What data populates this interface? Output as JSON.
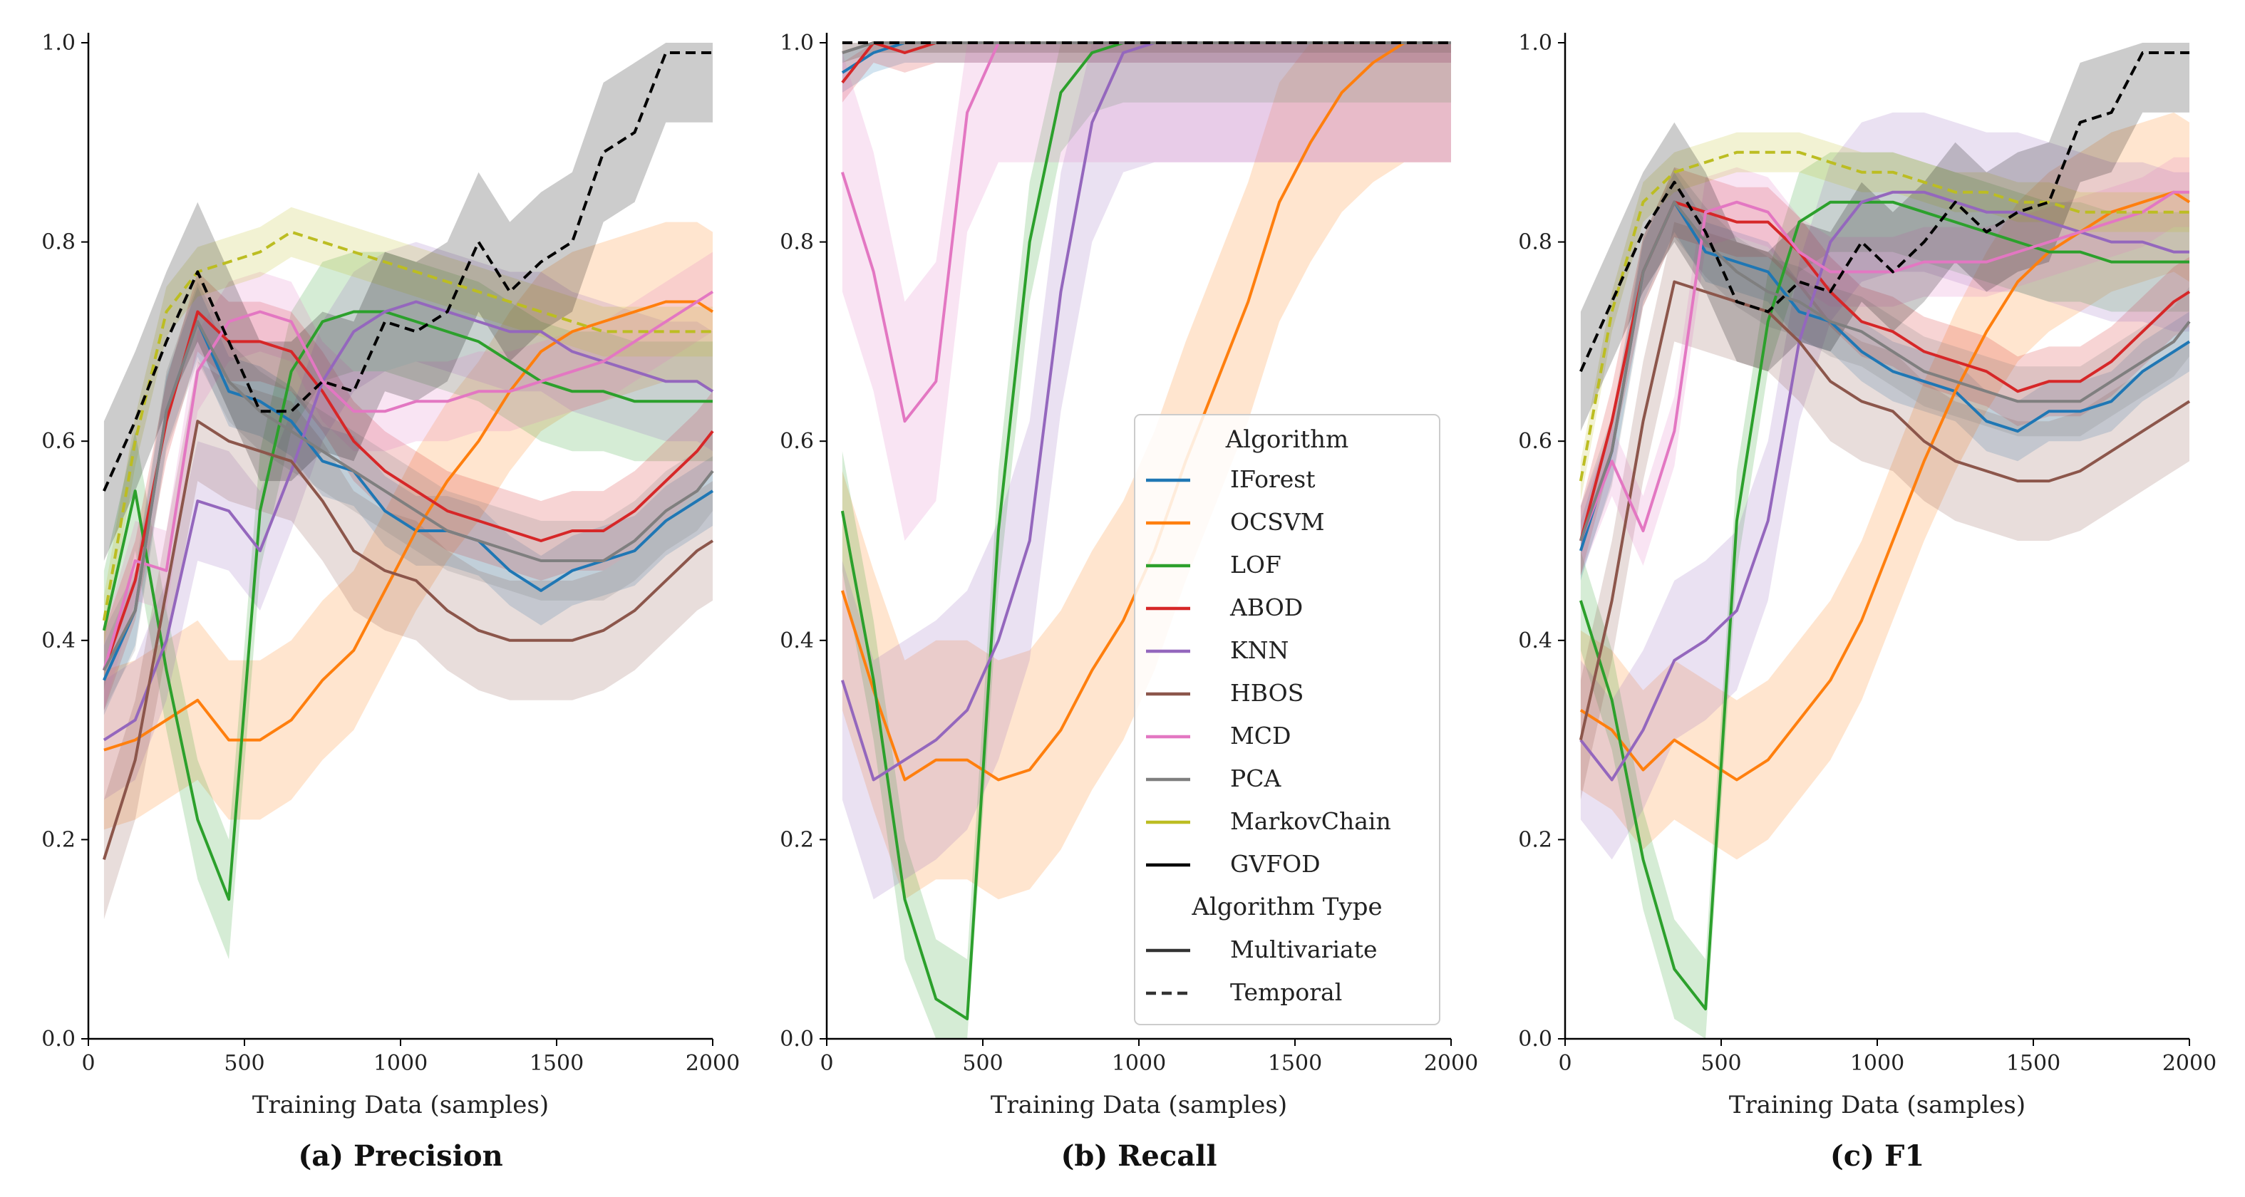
{
  "chart_data": [
    {
      "type": "line",
      "caption": "(a)  Precision",
      "xlabel": "Training Data (samples)",
      "ylabel": "",
      "xlim": [
        0,
        2000
      ],
      "ylim": [
        0,
        1.0
      ],
      "xticks": [
        "0",
        "500",
        "1000",
        "1500",
        "2000"
      ],
      "yticks": [
        "0.0",
        "0.2",
        "0.4",
        "0.6",
        "0.8",
        "1.0"
      ],
      "x": [
        50,
        150,
        250,
        350,
        450,
        550,
        650,
        750,
        850,
        950,
        1050,
        1150,
        1250,
        1350,
        1450,
        1550,
        1650,
        1750,
        1850,
        1950,
        2000
      ],
      "series": [
        {
          "name": "IForest",
          "values": [
            0.36,
            0.43,
            0.63,
            0.72,
            0.65,
            0.64,
            0.62,
            0.58,
            0.57,
            0.53,
            0.51,
            0.51,
            0.5,
            0.47,
            0.45,
            0.47,
            0.48,
            0.49,
            0.52,
            0.54,
            0.55
          ],
          "band": 0.035
        },
        {
          "name": "OCSVM",
          "values": [
            0.29,
            0.3,
            0.32,
            0.34,
            0.3,
            0.3,
            0.32,
            0.36,
            0.39,
            0.45,
            0.51,
            0.56,
            0.6,
            0.65,
            0.69,
            0.71,
            0.72,
            0.73,
            0.74,
            0.74,
            0.73
          ],
          "band": 0.08
        },
        {
          "name": "LOF",
          "values": [
            0.41,
            0.55,
            0.37,
            0.22,
            0.14,
            0.53,
            0.67,
            0.72,
            0.73,
            0.73,
            0.72,
            0.71,
            0.7,
            0.68,
            0.66,
            0.65,
            0.65,
            0.64,
            0.64,
            0.64,
            0.64
          ],
          "band": 0.06
        },
        {
          "name": "ABOD",
          "values": [
            0.37,
            0.46,
            0.62,
            0.73,
            0.7,
            0.7,
            0.69,
            0.65,
            0.6,
            0.57,
            0.55,
            0.53,
            0.52,
            0.51,
            0.5,
            0.51,
            0.51,
            0.53,
            0.56,
            0.59,
            0.61
          ],
          "band": 0.04
        },
        {
          "name": "KNN",
          "values": [
            0.3,
            0.32,
            0.4,
            0.54,
            0.53,
            0.49,
            0.57,
            0.66,
            0.71,
            0.73,
            0.74,
            0.73,
            0.72,
            0.71,
            0.71,
            0.69,
            0.68,
            0.67,
            0.66,
            0.66,
            0.65
          ],
          "band": 0.06
        },
        {
          "name": "HBOS",
          "values": [
            0.18,
            0.28,
            0.45,
            0.62,
            0.6,
            0.59,
            0.58,
            0.54,
            0.49,
            0.47,
            0.46,
            0.43,
            0.41,
            0.4,
            0.4,
            0.4,
            0.41,
            0.43,
            0.46,
            0.49,
            0.5
          ],
          "band": 0.06
        },
        {
          "name": "MCD",
          "values": [
            0.37,
            0.48,
            0.47,
            0.67,
            0.72,
            0.73,
            0.72,
            0.66,
            0.63,
            0.63,
            0.64,
            0.64,
            0.65,
            0.65,
            0.66,
            0.67,
            0.68,
            0.7,
            0.72,
            0.74,
            0.75
          ],
          "band": 0.04
        },
        {
          "name": "PCA",
          "values": [
            0.37,
            0.43,
            0.63,
            0.72,
            0.66,
            0.63,
            0.61,
            0.59,
            0.57,
            0.55,
            0.53,
            0.51,
            0.5,
            0.49,
            0.48,
            0.48,
            0.48,
            0.5,
            0.53,
            0.55,
            0.57
          ],
          "band": 0.04
        },
        {
          "name": "MarkovChain",
          "values": [
            0.42,
            0.6,
            0.73,
            0.77,
            0.78,
            0.79,
            0.81,
            0.8,
            0.79,
            0.78,
            0.77,
            0.76,
            0.75,
            0.74,
            0.73,
            0.72,
            0.71,
            0.71,
            0.71,
            0.71,
            0.71
          ],
          "band": 0.025,
          "dashed": true
        },
        {
          "name": "GVFOD",
          "values": [
            0.55,
            0.62,
            0.7,
            0.77,
            0.7,
            0.63,
            0.63,
            0.66,
            0.65,
            0.72,
            0.71,
            0.73,
            0.8,
            0.75,
            0.78,
            0.8,
            0.89,
            0.91,
            0.99,
            0.99,
            0.99
          ],
          "band": 0.07,
          "dashed": true
        }
      ]
    },
    {
      "type": "line",
      "caption": "(b)  Recall",
      "xlabel": "Training Data (samples)",
      "ylabel": "",
      "xlim": [
        0,
        2000
      ],
      "ylim": [
        0,
        1.0
      ],
      "xticks": [
        "0",
        "500",
        "1000",
        "1500",
        "2000"
      ],
      "yticks": [
        "0.0",
        "0.2",
        "0.4",
        "0.6",
        "0.8",
        "1.0"
      ],
      "x": [
        50,
        150,
        250,
        350,
        450,
        550,
        650,
        750,
        850,
        950,
        1050,
        1150,
        1250,
        1350,
        1450,
        1550,
        1650,
        1750,
        1850,
        1950,
        2000
      ],
      "series": [
        {
          "name": "IForest",
          "values": [
            0.97,
            0.99,
            1.0,
            1.0,
            1.0,
            1.0,
            1.0,
            1.0,
            1.0,
            1.0,
            1.0,
            1.0,
            1.0,
            1.0,
            1.0,
            1.0,
            1.0,
            1.0,
            1.0,
            1.0,
            1.0
          ],
          "band": 0.02
        },
        {
          "name": "OCSVM",
          "values": [
            0.45,
            0.35,
            0.26,
            0.28,
            0.28,
            0.26,
            0.27,
            0.31,
            0.37,
            0.42,
            0.49,
            0.58,
            0.66,
            0.74,
            0.84,
            0.9,
            0.95,
            0.98,
            1.0,
            1.0,
            1.0
          ],
          "band": 0.12
        },
        {
          "name": "LOF",
          "values": [
            0.53,
            0.36,
            0.14,
            0.04,
            0.02,
            0.51,
            0.8,
            0.95,
            0.99,
            1.0,
            1.0,
            1.0,
            1.0,
            1.0,
            1.0,
            1.0,
            1.0,
            1.0,
            1.0,
            1.0,
            1.0
          ],
          "band": 0.06
        },
        {
          "name": "ABOD",
          "values": [
            0.96,
            1.0,
            0.99,
            1.0,
            1.0,
            1.0,
            1.0,
            1.0,
            1.0,
            1.0,
            1.0,
            1.0,
            1.0,
            1.0,
            1.0,
            1.0,
            1.0,
            1.0,
            1.0,
            1.0,
            1.0
          ],
          "band": 0.02
        },
        {
          "name": "KNN",
          "values": [
            0.36,
            0.26,
            0.28,
            0.3,
            0.33,
            0.4,
            0.5,
            0.75,
            0.92,
            0.99,
            1.0,
            1.0,
            1.0,
            1.0,
            1.0,
            1.0,
            1.0,
            1.0,
            1.0,
            1.0,
            1.0
          ],
          "band": 0.12
        },
        {
          "name": "HBOS",
          "values": [
            0.99,
            1.0,
            1.0,
            1.0,
            1.0,
            1.0,
            1.0,
            1.0,
            1.0,
            1.0,
            1.0,
            1.0,
            1.0,
            1.0,
            1.0,
            1.0,
            1.0,
            1.0,
            1.0,
            1.0,
            1.0
          ],
          "band": 0.01
        },
        {
          "name": "MCD",
          "values": [
            0.87,
            0.77,
            0.62,
            0.66,
            0.93,
            1.0,
            1.0,
            1.0,
            1.0,
            1.0,
            1.0,
            1.0,
            1.0,
            1.0,
            1.0,
            1.0,
            1.0,
            1.0,
            1.0,
            1.0,
            1.0
          ],
          "band": 0.12
        },
        {
          "name": "PCA",
          "values": [
            0.99,
            1.0,
            1.0,
            1.0,
            1.0,
            1.0,
            1.0,
            1.0,
            1.0,
            1.0,
            1.0,
            1.0,
            1.0,
            1.0,
            1.0,
            1.0,
            1.0,
            1.0,
            1.0,
            1.0,
            1.0
          ],
          "band": 0.01
        },
        {
          "name": "MarkovChain",
          "values": [
            1.0,
            1.0,
            1.0,
            1.0,
            1.0,
            1.0,
            1.0,
            1.0,
            1.0,
            1.0,
            1.0,
            1.0,
            1.0,
            1.0,
            1.0,
            1.0,
            1.0,
            1.0,
            1.0,
            1.0,
            1.0
          ],
          "band": 0.0,
          "dashed": true
        },
        {
          "name": "GVFOD",
          "values": [
            1.0,
            1.0,
            1.0,
            1.0,
            1.0,
            1.0,
            1.0,
            1.0,
            1.0,
            1.0,
            1.0,
            1.0,
            1.0,
            1.0,
            1.0,
            1.0,
            1.0,
            1.0,
            1.0,
            1.0,
            1.0
          ],
          "band": 0.0,
          "dashed": true
        }
      ],
      "legend": {
        "title": "Algorithm",
        "type_title": "Algorithm Type",
        "type_entries": [
          {
            "label": "Multivariate",
            "dashed": false
          },
          {
            "label": "Temporal",
            "dashed": true
          }
        ]
      }
    },
    {
      "type": "line",
      "caption": "(c)  F1",
      "xlabel": "Training Data (samples)",
      "ylabel": "",
      "xlim": [
        0,
        2000
      ],
      "ylim": [
        0,
        1.0
      ],
      "xticks": [
        "0",
        "500",
        "1000",
        "1500",
        "2000"
      ],
      "yticks": [
        "0.0",
        "0.2",
        "0.4",
        "0.6",
        "0.8",
        "1.0"
      ],
      "x": [
        50,
        150,
        250,
        350,
        450,
        550,
        650,
        750,
        850,
        950,
        1050,
        1150,
        1250,
        1350,
        1450,
        1550,
        1650,
        1750,
        1850,
        1950,
        2000
      ],
      "series": [
        {
          "name": "IForest",
          "values": [
            0.49,
            0.59,
            0.77,
            0.84,
            0.79,
            0.78,
            0.77,
            0.73,
            0.72,
            0.69,
            0.67,
            0.66,
            0.65,
            0.62,
            0.61,
            0.63,
            0.63,
            0.64,
            0.67,
            0.69,
            0.7
          ],
          "band": 0.03
        },
        {
          "name": "OCSVM",
          "values": [
            0.33,
            0.31,
            0.27,
            0.3,
            0.28,
            0.26,
            0.28,
            0.32,
            0.36,
            0.42,
            0.5,
            0.58,
            0.65,
            0.71,
            0.76,
            0.79,
            0.81,
            0.83,
            0.84,
            0.85,
            0.84
          ],
          "band": 0.08
        },
        {
          "name": "LOF",
          "values": [
            0.44,
            0.34,
            0.18,
            0.07,
            0.03,
            0.52,
            0.72,
            0.82,
            0.84,
            0.84,
            0.84,
            0.83,
            0.82,
            0.81,
            0.8,
            0.79,
            0.79,
            0.78,
            0.78,
            0.78,
            0.78
          ],
          "band": 0.05
        },
        {
          "name": "ABOD",
          "values": [
            0.5,
            0.62,
            0.77,
            0.84,
            0.83,
            0.82,
            0.82,
            0.79,
            0.75,
            0.72,
            0.71,
            0.69,
            0.68,
            0.67,
            0.65,
            0.66,
            0.66,
            0.68,
            0.71,
            0.74,
            0.75
          ],
          "band": 0.035
        },
        {
          "name": "KNN",
          "values": [
            0.3,
            0.26,
            0.31,
            0.38,
            0.4,
            0.43,
            0.52,
            0.7,
            0.8,
            0.84,
            0.85,
            0.85,
            0.84,
            0.83,
            0.83,
            0.82,
            0.81,
            0.8,
            0.8,
            0.79,
            0.79
          ],
          "band": 0.08
        },
        {
          "name": "HBOS",
          "values": [
            0.3,
            0.44,
            0.62,
            0.76,
            0.75,
            0.74,
            0.73,
            0.7,
            0.66,
            0.64,
            0.63,
            0.6,
            0.58,
            0.57,
            0.56,
            0.56,
            0.57,
            0.59,
            0.61,
            0.63,
            0.64
          ],
          "band": 0.06
        },
        {
          "name": "MCD",
          "values": [
            0.5,
            0.58,
            0.51,
            0.61,
            0.83,
            0.84,
            0.83,
            0.79,
            0.77,
            0.77,
            0.77,
            0.78,
            0.78,
            0.78,
            0.79,
            0.8,
            0.81,
            0.82,
            0.83,
            0.85,
            0.85
          ],
          "band": 0.035
        },
        {
          "name": "PCA",
          "values": [
            0.5,
            0.59,
            0.77,
            0.84,
            0.8,
            0.77,
            0.75,
            0.74,
            0.72,
            0.71,
            0.69,
            0.67,
            0.66,
            0.65,
            0.64,
            0.64,
            0.64,
            0.66,
            0.68,
            0.7,
            0.72
          ],
          "band": 0.035
        },
        {
          "name": "MarkovChain",
          "values": [
            0.56,
            0.73,
            0.84,
            0.87,
            0.88,
            0.89,
            0.89,
            0.89,
            0.88,
            0.87,
            0.87,
            0.86,
            0.85,
            0.85,
            0.84,
            0.84,
            0.83,
            0.83,
            0.83,
            0.83,
            0.83
          ],
          "band": 0.02,
          "dashed": true
        },
        {
          "name": "GVFOD",
          "values": [
            0.67,
            0.74,
            0.81,
            0.86,
            0.81,
            0.74,
            0.73,
            0.76,
            0.75,
            0.8,
            0.77,
            0.8,
            0.84,
            0.81,
            0.83,
            0.84,
            0.92,
            0.93,
            0.99,
            0.99,
            0.99
          ],
          "band": 0.06,
          "dashed": true
        }
      ]
    }
  ],
  "colors": {
    "IForest": "#1f77b4",
    "OCSVM": "#ff7f0e",
    "LOF": "#2ca02c",
    "ABOD": "#d62728",
    "KNN": "#9467bd",
    "HBOS": "#8c564b",
    "MCD": "#e377c2",
    "PCA": "#7f7f7f",
    "MarkovChain": "#bcbd22",
    "GVFOD": "#000000"
  }
}
